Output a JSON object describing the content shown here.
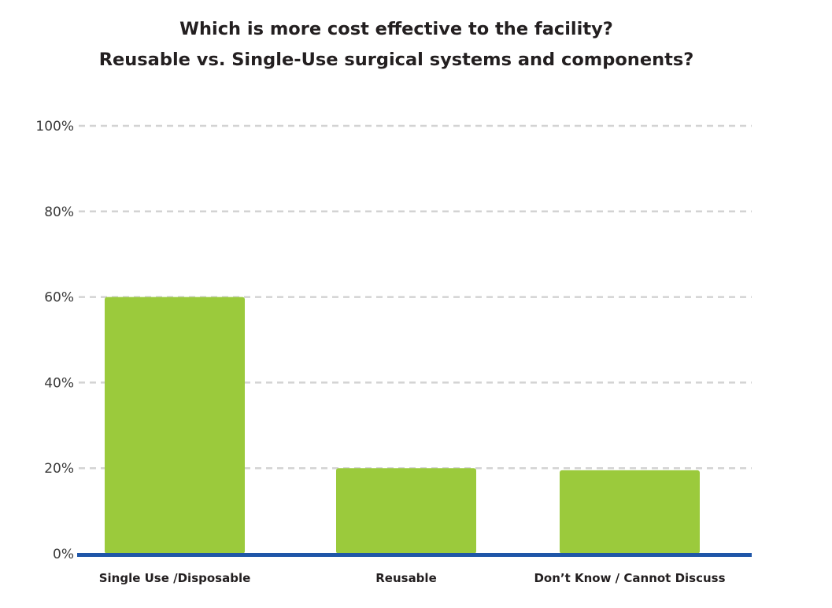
{
  "chart_data": {
    "type": "bar",
    "title": "Which is more cost effective to the facility?",
    "subtitle": "Reusable vs. Single-Use surgical systems and components?",
    "categories": [
      "Single Use /Disposable",
      "Reusable",
      "Don’t Know / Cannot Discuss"
    ],
    "values": [
      60,
      20,
      19.5
    ],
    "y_ticks": [
      0,
      20,
      40,
      60,
      80,
      100
    ],
    "y_tick_labels": [
      "0%",
      "20%",
      "40%",
      "60%",
      "80%",
      "100%"
    ],
    "ylim": [
      0,
      100
    ],
    "xlabel": "",
    "ylabel": "",
    "grid": true,
    "legend": "none",
    "colors": {
      "bar": "#9bca3c",
      "axis": "#1f56a8",
      "grid": "#d3d3d3",
      "title": "#231f20",
      "tick_text": "#3a3a3a"
    }
  }
}
